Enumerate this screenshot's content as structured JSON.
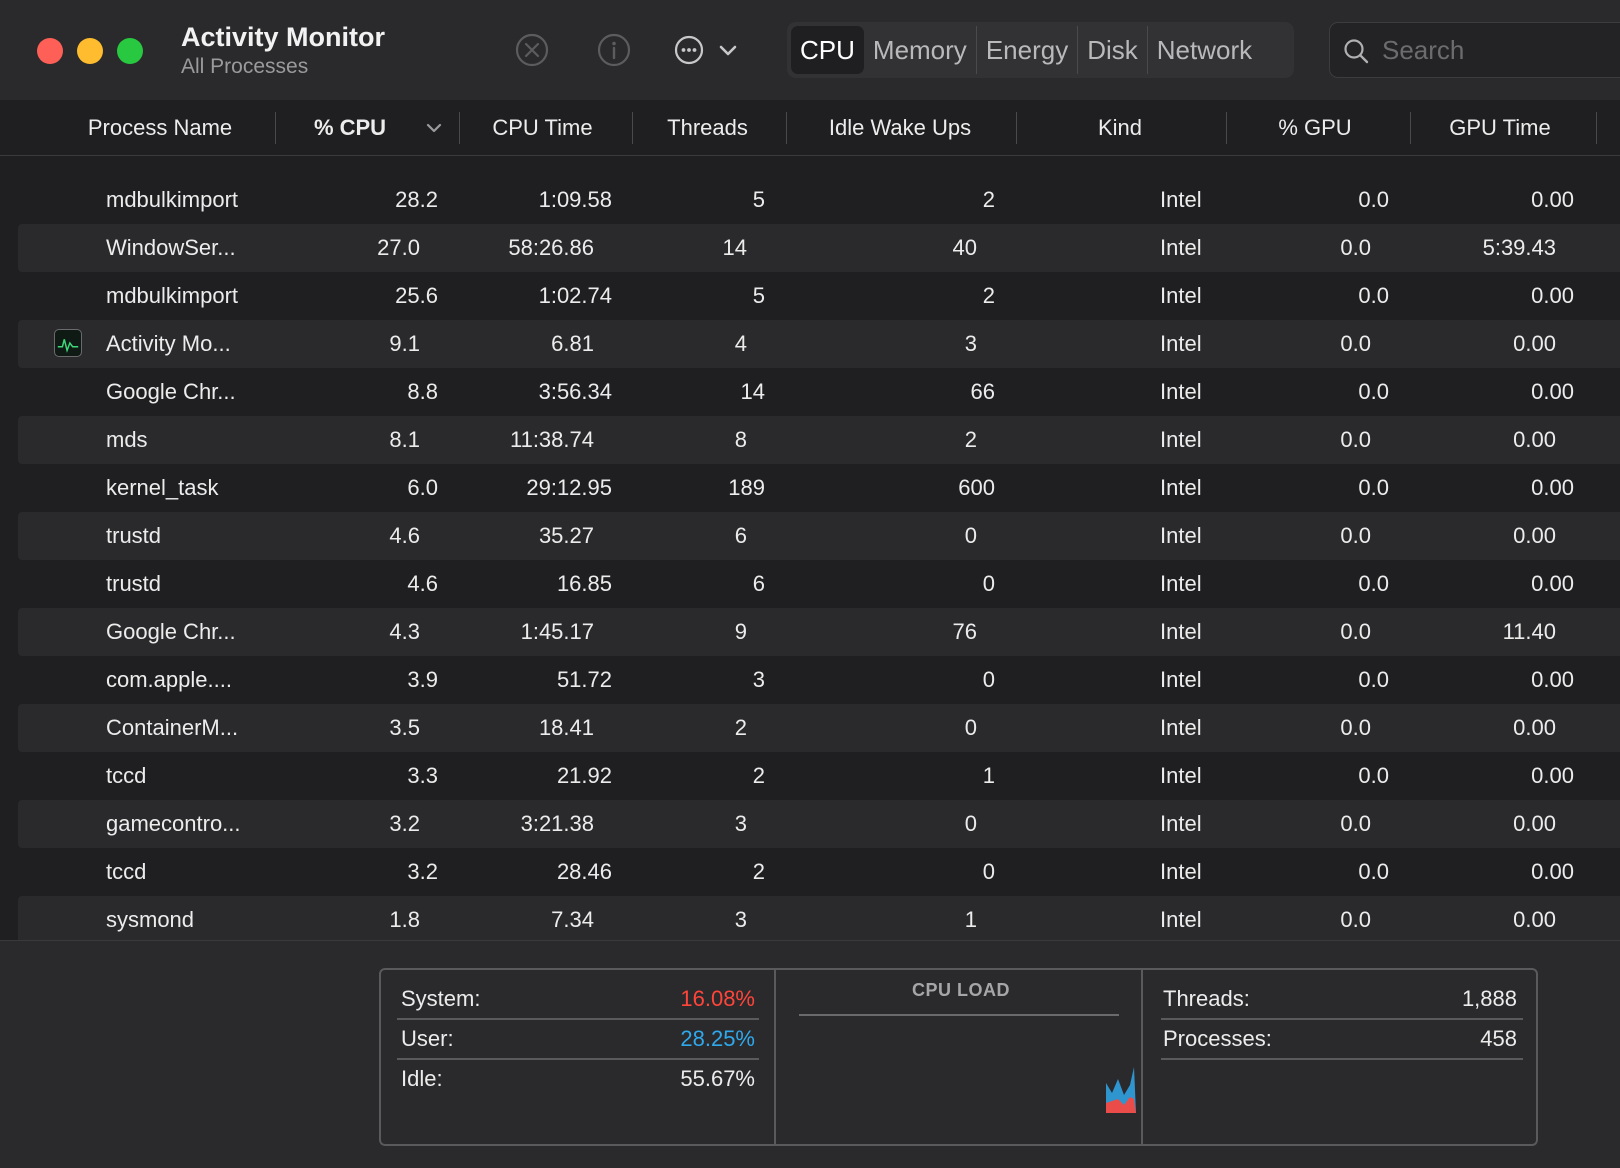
{
  "window": {
    "title": "Activity Monitor",
    "subtitle": "All Processes"
  },
  "toolbar": {
    "stop_icon": "x-circle-icon",
    "info_icon": "info-circle-icon",
    "more_icon": "ellipsis-circle-icon"
  },
  "tabs": [
    "CPU",
    "Memory",
    "Energy",
    "Disk",
    "Network"
  ],
  "active_tab": "CPU",
  "search": {
    "placeholder": "Search",
    "value": ""
  },
  "columns": [
    "Process Name",
    "% CPU",
    "CPU Time",
    "Threads",
    "Idle Wake Ups",
    "Kind",
    "% GPU",
    "GPU Time"
  ],
  "sort": {
    "column": "% CPU",
    "direction": "descending"
  },
  "processes": [
    {
      "name": "mdbulkimport",
      "cpu": "28.2",
      "cpu_time": "1:09.58",
      "threads": "5",
      "idle": "2",
      "kind": "Intel",
      "gpu": "0.0",
      "gpu_time": "0.00"
    },
    {
      "name": "WindowSer...",
      "cpu": "27.0",
      "cpu_time": "58:26.86",
      "threads": "14",
      "idle": "40",
      "kind": "Intel",
      "gpu": "0.0",
      "gpu_time": "5:39.43"
    },
    {
      "name": "mdbulkimport",
      "cpu": "25.6",
      "cpu_time": "1:02.74",
      "threads": "5",
      "idle": "2",
      "kind": "Intel",
      "gpu": "0.0",
      "gpu_time": "0.00"
    },
    {
      "name": "Activity Mo...",
      "cpu": "9.1",
      "cpu_time": "6.81",
      "threads": "4",
      "idle": "3",
      "kind": "Intel",
      "gpu": "0.0",
      "gpu_time": "0.00",
      "has_icon": true
    },
    {
      "name": "Google Chr...",
      "cpu": "8.8",
      "cpu_time": "3:56.34",
      "threads": "14",
      "idle": "66",
      "kind": "Intel",
      "gpu": "0.0",
      "gpu_time": "0.00"
    },
    {
      "name": "mds",
      "cpu": "8.1",
      "cpu_time": "11:38.74",
      "threads": "8",
      "idle": "2",
      "kind": "Intel",
      "gpu": "0.0",
      "gpu_time": "0.00"
    },
    {
      "name": "kernel_task",
      "cpu": "6.0",
      "cpu_time": "29:12.95",
      "threads": "189",
      "idle": "600",
      "kind": "Intel",
      "gpu": "0.0",
      "gpu_time": "0.00"
    },
    {
      "name": "trustd",
      "cpu": "4.6",
      "cpu_time": "35.27",
      "threads": "6",
      "idle": "0",
      "kind": "Intel",
      "gpu": "0.0",
      "gpu_time": "0.00"
    },
    {
      "name": "trustd",
      "cpu": "4.6",
      "cpu_time": "16.85",
      "threads": "6",
      "idle": "0",
      "kind": "Intel",
      "gpu": "0.0",
      "gpu_time": "0.00"
    },
    {
      "name": "Google Chr...",
      "cpu": "4.3",
      "cpu_time": "1:45.17",
      "threads": "9",
      "idle": "76",
      "kind": "Intel",
      "gpu": "0.0",
      "gpu_time": "11.40"
    },
    {
      "name": "com.apple....",
      "cpu": "3.9",
      "cpu_time": "51.72",
      "threads": "3",
      "idle": "0",
      "kind": "Intel",
      "gpu": "0.0",
      "gpu_time": "0.00"
    },
    {
      "name": "ContainerM...",
      "cpu": "3.5",
      "cpu_time": "18.41",
      "threads": "2",
      "idle": "0",
      "kind": "Intel",
      "gpu": "0.0",
      "gpu_time": "0.00"
    },
    {
      "name": "tccd",
      "cpu": "3.3",
      "cpu_time": "21.92",
      "threads": "2",
      "idle": "1",
      "kind": "Intel",
      "gpu": "0.0",
      "gpu_time": "0.00"
    },
    {
      "name": "gamecontro...",
      "cpu": "3.2",
      "cpu_time": "3:21.38",
      "threads": "3",
      "idle": "0",
      "kind": "Intel",
      "gpu": "0.0",
      "gpu_time": "0.00"
    },
    {
      "name": "tccd",
      "cpu": "3.2",
      "cpu_time": "28.46",
      "threads": "2",
      "idle": "0",
      "kind": "Intel",
      "gpu": "0.0",
      "gpu_time": "0.00"
    },
    {
      "name": "sysmond",
      "cpu": "1.8",
      "cpu_time": "7.34",
      "threads": "3",
      "idle": "1",
      "kind": "Intel",
      "gpu": "0.0",
      "gpu_time": "0.00"
    }
  ],
  "footer": {
    "system_label": "System:",
    "system_value": "16.08%",
    "user_label": "User:",
    "user_value": "28.25%",
    "idle_label": "Idle:",
    "idle_value": "55.67%",
    "cpu_load_title": "CPU LOAD",
    "threads_label": "Threads:",
    "threads_value": "1,888",
    "processes_label": "Processes:",
    "processes_value": "458"
  },
  "colors": {
    "system": "#ff453a",
    "user": "#2fa8ec",
    "close": "#fe5f57",
    "minimize": "#febc2e",
    "zoom": "#28c840"
  }
}
